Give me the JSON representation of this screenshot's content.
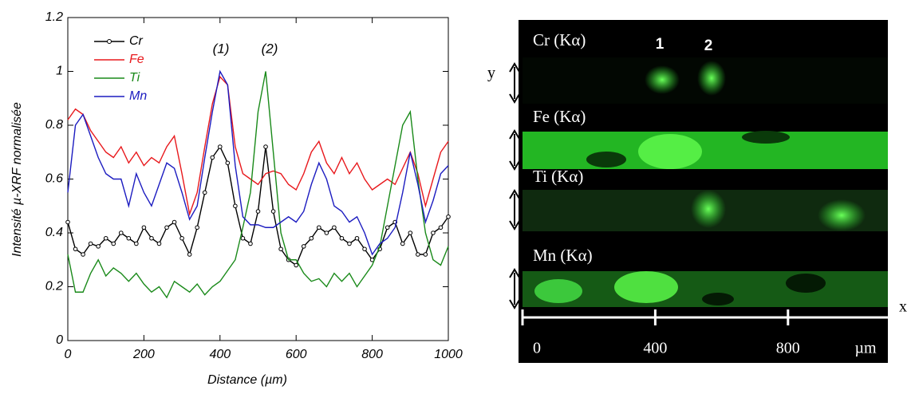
{
  "chart_data": {
    "type": "line",
    "xlabel": "Distance (µm)",
    "ylabel": "Intensité µ-XRF normalisée",
    "annotations": [
      "(1)",
      "(2)"
    ],
    "xlim": [
      0,
      1000
    ],
    "xticks": [
      0,
      200,
      400,
      600,
      800,
      1000
    ],
    "ylim": [
      0,
      1.2
    ],
    "yticks": [
      0,
      0.2,
      0.4,
      0.6,
      0.8,
      1,
      1.2
    ],
    "legend": "upper left",
    "x": [
      0,
      20,
      40,
      60,
      80,
      100,
      120,
      140,
      160,
      180,
      200,
      220,
      240,
      260,
      280,
      300,
      320,
      340,
      360,
      380,
      400,
      420,
      440,
      460,
      480,
      500,
      520,
      540,
      560,
      580,
      600,
      620,
      640,
      660,
      680,
      700,
      720,
      740,
      760,
      780,
      800,
      820,
      840,
      860,
      880,
      900,
      920,
      940,
      960,
      980,
      1000
    ],
    "series": [
      {
        "name": "Cr",
        "color": "#000000",
        "marker": "circle",
        "values": [
          0.44,
          0.34,
          0.32,
          0.36,
          0.35,
          0.38,
          0.36,
          0.4,
          0.38,
          0.36,
          0.42,
          0.38,
          0.36,
          0.42,
          0.44,
          0.38,
          0.32,
          0.42,
          0.55,
          0.68,
          0.72,
          0.66,
          0.5,
          0.38,
          0.36,
          0.48,
          0.72,
          0.48,
          0.34,
          0.3,
          0.28,
          0.35,
          0.38,
          0.42,
          0.4,
          0.42,
          0.38,
          0.36,
          0.38,
          0.34,
          0.3,
          0.34,
          0.42,
          0.44,
          0.36,
          0.4,
          0.32,
          0.32,
          0.4,
          0.42,
          0.46
        ]
      },
      {
        "name": "Fe",
        "color": "#e8181c",
        "values": [
          0.82,
          0.86,
          0.84,
          0.78,
          0.74,
          0.7,
          0.68,
          0.72,
          0.66,
          0.7,
          0.65,
          0.68,
          0.66,
          0.72,
          0.76,
          0.62,
          0.47,
          0.55,
          0.72,
          0.88,
          0.98,
          0.95,
          0.72,
          0.62,
          0.6,
          0.58,
          0.62,
          0.63,
          0.62,
          0.58,
          0.56,
          0.62,
          0.7,
          0.74,
          0.66,
          0.62,
          0.68,
          0.62,
          0.66,
          0.6,
          0.56,
          0.58,
          0.6,
          0.58,
          0.64,
          0.7,
          0.62,
          0.5,
          0.6,
          0.7,
          0.74
        ]
      },
      {
        "name": "Ti",
        "color": "#1a8a1a",
        "values": [
          0.32,
          0.18,
          0.18,
          0.25,
          0.3,
          0.24,
          0.27,
          0.25,
          0.22,
          0.25,
          0.21,
          0.18,
          0.2,
          0.16,
          0.22,
          0.2,
          0.18,
          0.21,
          0.17,
          0.2,
          0.22,
          0.26,
          0.3,
          0.42,
          0.55,
          0.85,
          1.0,
          0.7,
          0.4,
          0.3,
          0.3,
          0.25,
          0.22,
          0.23,
          0.2,
          0.25,
          0.22,
          0.25,
          0.2,
          0.24,
          0.28,
          0.35,
          0.5,
          0.65,
          0.8,
          0.85,
          0.6,
          0.4,
          0.3,
          0.28,
          0.35
        ]
      },
      {
        "name": "Mn",
        "color": "#1c1cc0",
        "values": [
          0.55,
          0.8,
          0.84,
          0.76,
          0.68,
          0.62,
          0.6,
          0.6,
          0.5,
          0.62,
          0.55,
          0.5,
          0.58,
          0.66,
          0.64,
          0.55,
          0.45,
          0.5,
          0.68,
          0.85,
          1.0,
          0.95,
          0.65,
          0.46,
          0.43,
          0.43,
          0.42,
          0.42,
          0.44,
          0.46,
          0.44,
          0.48,
          0.58,
          0.66,
          0.6,
          0.5,
          0.48,
          0.44,
          0.46,
          0.4,
          0.32,
          0.36,
          0.38,
          0.42,
          0.55,
          0.7,
          0.58,
          0.44,
          0.52,
          0.62,
          0.65
        ]
      }
    ]
  },
  "image_panel": {
    "strips": [
      "Cr (Kα)",
      "Fe (Kα)",
      "Ti (Kα)",
      "Mn (Kα)"
    ],
    "spots": [
      "1",
      "2"
    ],
    "axis_y": "y",
    "axis_x": "x",
    "scale_ticks": [
      0,
      400,
      800
    ],
    "scale_unit": "µm"
  }
}
